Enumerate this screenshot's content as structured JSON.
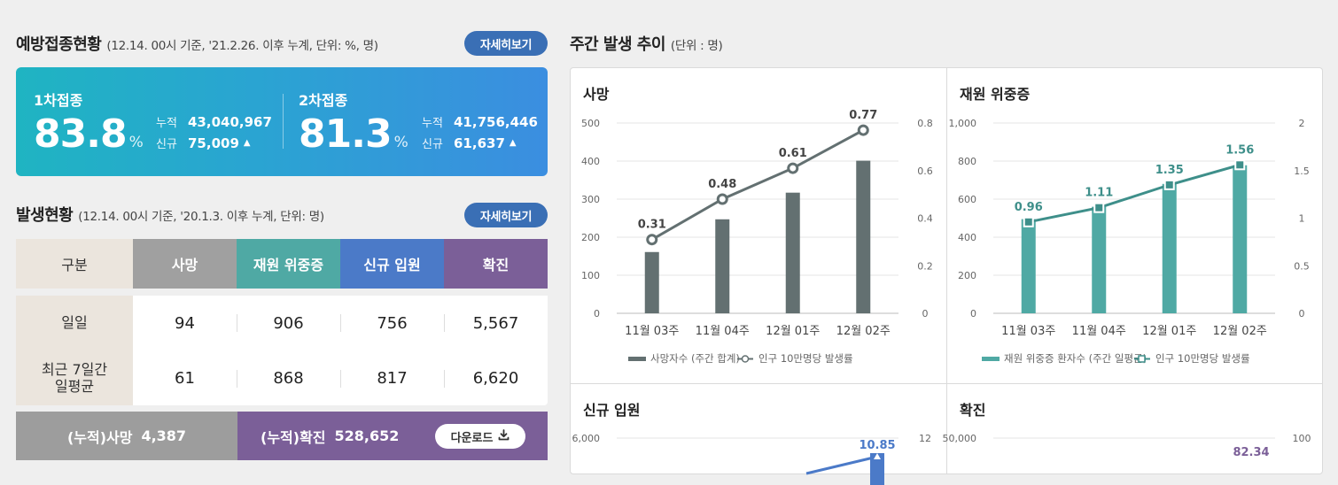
{
  "vaccination": {
    "title": "예방접종현황",
    "subtitle": "(12.14. 00시 기준, '21.2.26. 이후 누계, 단위: %, 명)",
    "detail_button": "자세히보기",
    "first": {
      "label": "1차접종",
      "percent": "83.8",
      "unit": "%",
      "cum_label": "누적",
      "cum_value": "43,040,967",
      "new_label": "신규",
      "new_value": "75,009",
      "trend_icon": "▲"
    },
    "second": {
      "label": "2차접종",
      "percent": "81.3",
      "unit": "%",
      "cum_label": "누적",
      "cum_value": "41,756,446",
      "new_label": "신규",
      "new_value": "61,637",
      "trend_icon": "▲"
    }
  },
  "occurrence": {
    "title": "발생현황",
    "subtitle": "(12.14. 00시 기준, '20.1.3. 이후 누계, 단위: 명)",
    "detail_button": "자세히보기",
    "headers": [
      "구분",
      "사망",
      "재원 위중증",
      "신규 입원",
      "확진"
    ],
    "rows": [
      {
        "label": "일일",
        "values": [
          "94",
          "906",
          "756",
          "5,567"
        ]
      },
      {
        "label": "최근 7일간\n일평균",
        "values": [
          "61",
          "868",
          "817",
          "6,620"
        ]
      }
    ],
    "cumulative": {
      "death_label": "(누적)사망",
      "death_value": "4,387",
      "confirmed_label": "(누적)확진",
      "confirmed_value": "528,652",
      "download_button": "다운로드",
      "download_icon": "download-icon"
    }
  },
  "weekly": {
    "title": "주간 발생 추이",
    "subtitle": "(단위 : 명)"
  },
  "chart_data": [
    {
      "type": "bar",
      "panel_title": "사망",
      "categories": [
        "11월 03주",
        "11월 04주",
        "12월 01주",
        "12월 02주"
      ],
      "series": [
        {
          "name": "사망자수 (주간 합계)",
          "type": "bar",
          "values": [
            161,
            247,
            317,
            401
          ],
          "color": "#637071",
          "axis": "left"
        },
        {
          "name": "인구 10만명당 발생률",
          "type": "line",
          "values": [
            0.31,
            0.48,
            0.61,
            0.77
          ],
          "labels": [
            "0.31",
            "0.48",
            "0.61",
            "0.77"
          ],
          "color": "#637071",
          "marker": "circle",
          "axis": "right"
        }
      ],
      "ylim_left": [
        0,
        500
      ],
      "yticks_left": [
        "0",
        "100",
        "200",
        "300",
        "400",
        "500"
      ],
      "ylim_right": [
        0,
        0.8
      ],
      "yticks_right": [
        "0",
        "0.2",
        "0.4",
        "0.6",
        "0.8"
      ],
      "legend_position": "bottom",
      "grid": true
    },
    {
      "type": "bar",
      "panel_title": "재원 위중증",
      "categories": [
        "11월 03주",
        "11월 04주",
        "12월 01주",
        "12월 02주"
      ],
      "series": [
        {
          "name": "재원 위중증 환자수 (주간 일평균)",
          "type": "bar",
          "values": [
            495,
            560,
            680,
            778
          ],
          "color": "#4fa9a4",
          "axis": "left"
        },
        {
          "name": "인구 10만명당 발생률",
          "type": "line",
          "values": [
            0.96,
            1.11,
            1.35,
            1.56
          ],
          "labels": [
            "0.96",
            "1.11",
            "1.35",
            "1.56"
          ],
          "color": "#3e8f8a",
          "marker": "square",
          "axis": "right"
        }
      ],
      "ylim_left": [
        0,
        1000
      ],
      "yticks_left": [
        "0",
        "200",
        "400",
        "600",
        "800",
        "1,000"
      ],
      "ylim_right": [
        0,
        2
      ],
      "yticks_right": [
        "0",
        "0.5",
        "1",
        "1.5",
        "2"
      ],
      "legend_position": "bottom",
      "grid": true
    },
    {
      "type": "bar",
      "panel_title": "신규 입원",
      "partially_visible": true,
      "visible_yticks_left": [
        "6,000"
      ],
      "visible_yticks_right": [
        "12"
      ],
      "series": [
        {
          "type": "line",
          "visible_labels": [
            "10.85"
          ],
          "color": "#4b7ac8"
        }
      ]
    },
    {
      "type": "bar",
      "panel_title": "확진",
      "partially_visible": true,
      "visible_yticks_left": [
        "50,000"
      ],
      "visible_yticks_right": [
        "100"
      ],
      "series": [
        {
          "type": "line",
          "visible_labels": [
            "82.34"
          ],
          "color": "#7b5f98"
        }
      ]
    }
  ]
}
